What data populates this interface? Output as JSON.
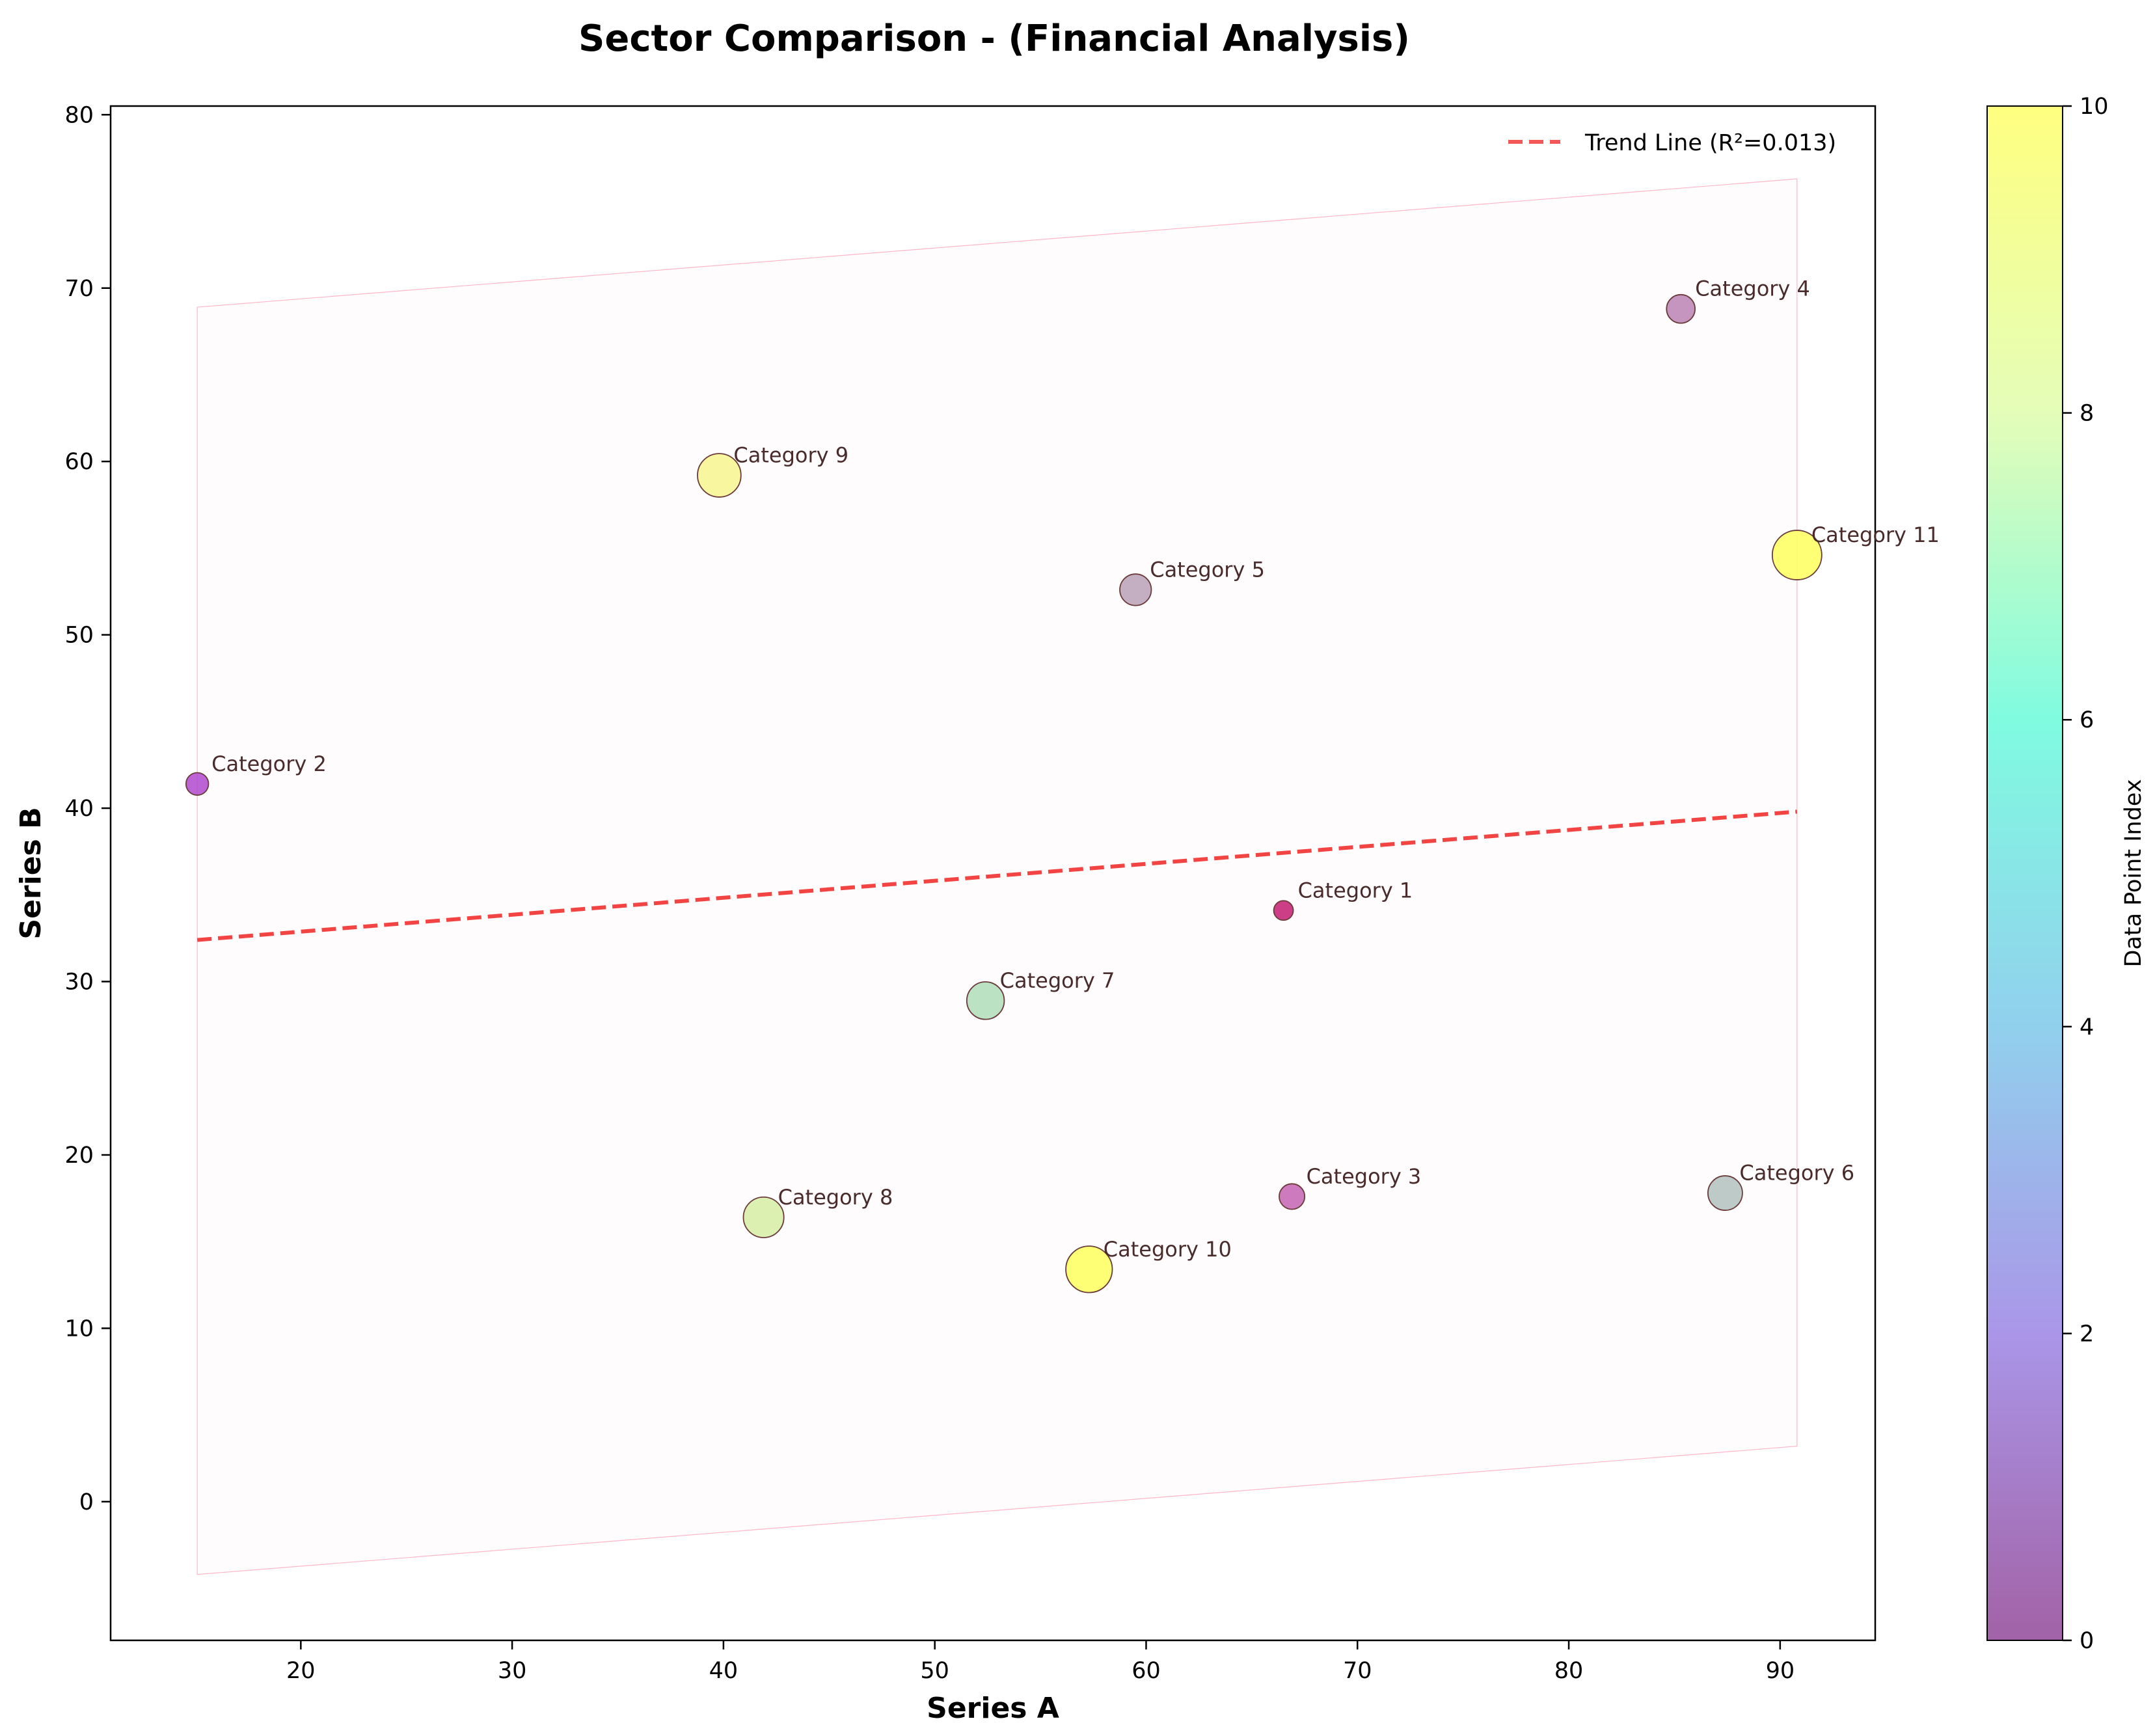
{
  "chart_data": {
    "type": "scatter",
    "title": "Sector Comparison - (Financial Analysis)",
    "xlabel": "Series A",
    "ylabel": "Series B",
    "xlim": [
      11,
      94.5
    ],
    "ylim": [
      -8,
      80.5
    ],
    "xticks": [
      20,
      30,
      40,
      50,
      60,
      70,
      80,
      90
    ],
    "yticks": [
      0,
      10,
      20,
      30,
      40,
      50,
      60,
      70,
      80
    ],
    "grid": false,
    "legend_position": "top-right",
    "legend": {
      "trend_label": "Trend Line (R²=0.013)"
    },
    "trend_color": "#f23a3a",
    "trend_line": {
      "x": [
        15.1,
        90.8
      ],
      "y": [
        32.4,
        39.8
      ]
    },
    "confidence_band": {
      "upper": {
        "x": [
          15.1,
          90.8
        ],
        "y": [
          68.9,
          76.3
        ]
      },
      "lower": {
        "x": [
          15.1,
          90.8
        ],
        "y": [
          -4.2,
          3.2
        ]
      }
    },
    "colorbar": {
      "label": "Data Point Index",
      "min": 0,
      "max": 10,
      "ticks": [
        0,
        2,
        4,
        6,
        8,
        10
      ],
      "colormap": [
        "#a262a6",
        "#aa96e8",
        "#91d0ed",
        "#80fbe0",
        "#e4fdb8",
        "#ffff80"
      ]
    },
    "points": [
      {
        "label": "Category 1",
        "x": 66.5,
        "y": 34.1,
        "color": "#c72a7a",
        "size": 0.0
      },
      {
        "label": "Category 2",
        "x": 15.1,
        "y": 41.4,
        "color": "#b552d2",
        "size": 0.1
      },
      {
        "label": "Category 3",
        "x": 66.9,
        "y": 17.6,
        "color": "#c86cb8",
        "size": 0.2
      },
      {
        "label": "Category 4",
        "x": 85.3,
        "y": 68.8,
        "color": "#c089b8",
        "size": 0.3
      },
      {
        "label": "Category 5",
        "x": 59.5,
        "y": 52.6,
        "color": "#bea5ba",
        "size": 0.4
      },
      {
        "label": "Category 6",
        "x": 87.4,
        "y": 17.8,
        "color": "#b6c4c2",
        "size": 0.5
      },
      {
        "label": "Category 7",
        "x": 52.4,
        "y": 28.9,
        "color": "#b3dfbc",
        "size": 0.6
      },
      {
        "label": "Category 8",
        "x": 41.9,
        "y": 16.4,
        "color": "#d8eeaa",
        "size": 0.7
      },
      {
        "label": "Category 9",
        "x": 39.8,
        "y": 59.2,
        "color": "#f8f596",
        "size": 0.8
      },
      {
        "label": "Category 10",
        "x": 57.3,
        "y": 13.4,
        "color": "#ffff66",
        "size": 0.9
      },
      {
        "label": "Category 11",
        "x": 90.8,
        "y": 54.6,
        "color": "#ffff66",
        "size": 1.0
      }
    ]
  }
}
